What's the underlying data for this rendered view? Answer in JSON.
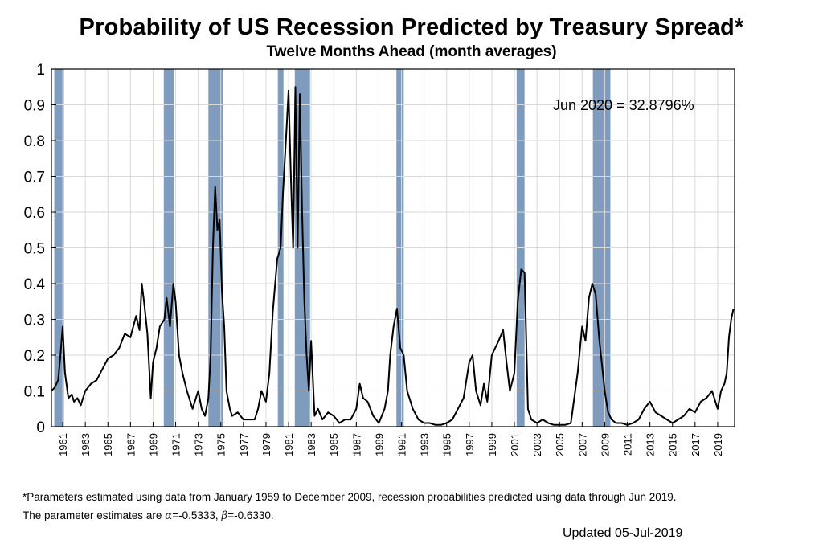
{
  "chart_data": {
    "type": "line",
    "title": "Probability of US Recession Predicted by Treasury Spread*",
    "subtitle": "Twelve Months Ahead (month averages)",
    "annotation": "Jun 2020 = 32.8796%",
    "ylim": [
      0,
      1
    ],
    "xlim": [
      1960.0,
      2020.5
    ],
    "y_ticks": [
      "0",
      "0.1",
      "0.2",
      "0.3",
      "0.4",
      "0.5",
      "0.6",
      "0.7",
      "0.8",
      "0.9",
      "1"
    ],
    "x_ticks": [
      "1961",
      "1963",
      "1965",
      "1967",
      "1969",
      "1971",
      "1973",
      "1975",
      "1977",
      "1979",
      "1981",
      "1983",
      "1985",
      "1987",
      "1989",
      "1991",
      "1993",
      "1995",
      "1997",
      "1999",
      "2001",
      "2003",
      "2005",
      "2007",
      "2009",
      "2011",
      "2013",
      "2015",
      "2017",
      "2019"
    ],
    "grid": true,
    "line_color": "#000000",
    "recession_color": "#7f9bbd",
    "recession_bands": [
      [
        1960.25,
        1961.1
      ],
      [
        1969.95,
        1970.85
      ],
      [
        1973.9,
        1975.2
      ],
      [
        1980.05,
        1980.55
      ],
      [
        1981.55,
        1982.9
      ],
      [
        1990.55,
        1991.2
      ],
      [
        2001.2,
        2001.9
      ],
      [
        2007.95,
        2009.5
      ]
    ],
    "series": [
      {
        "x": [
          1960.0,
          1960.3,
          1960.6,
          1960.8,
          1961.0,
          1961.2,
          1961.5,
          1961.8,
          1962.0,
          1962.3,
          1962.6,
          1963.0,
          1963.5,
          1964.0,
          1964.5,
          1965.0,
          1965.5,
          1966.0,
          1966.5,
          1967.0,
          1967.5,
          1967.8,
          1968.0,
          1968.2,
          1968.5,
          1968.8,
          1969.0,
          1969.3,
          1969.6,
          1970.0,
          1970.2,
          1970.5,
          1970.8,
          1971.0,
          1971.3,
          1971.6,
          1972.0,
          1972.5,
          1973.0,
          1973.3,
          1973.6,
          1973.9,
          1974.1,
          1974.3,
          1974.5,
          1974.7,
          1974.9,
          1975.1,
          1975.3,
          1975.5,
          1975.8,
          1976.0,
          1976.5,
          1977.0,
          1977.5,
          1978.0,
          1978.3,
          1978.6,
          1979.0,
          1979.3,
          1979.6,
          1980.0,
          1980.3,
          1980.5,
          1980.8,
          1981.0,
          1981.2,
          1981.4,
          1981.6,
          1981.8,
          1982.0,
          1982.2,
          1982.4,
          1982.6,
          1982.8,
          1983.0,
          1983.3,
          1983.6,
          1984.0,
          1984.5,
          1985.0,
          1985.5,
          1986.0,
          1986.5,
          1987.0,
          1987.3,
          1987.6,
          1988.0,
          1988.5,
          1989.0,
          1989.5,
          1989.8,
          1990.0,
          1990.3,
          1990.6,
          1990.9,
          1991.2,
          1991.5,
          1992.0,
          1992.5,
          1993.0,
          1993.5,
          1994.0,
          1994.5,
          1995.0,
          1995.5,
          1996.0,
          1996.5,
          1997.0,
          1997.3,
          1997.6,
          1998.0,
          1998.3,
          1998.6,
          1999.0,
          1999.3,
          1999.6,
          2000.0,
          2000.3,
          2000.6,
          2001.0,
          2001.3,
          2001.6,
          2001.9,
          2002.2,
          2002.5,
          2003.0,
          2003.5,
          2004.0,
          2004.5,
          2005.0,
          2005.5,
          2006.0,
          2006.3,
          2006.6,
          2007.0,
          2007.3,
          2007.6,
          2007.9,
          2008.2,
          2008.5,
          2008.8,
          2009.0,
          2009.3,
          2009.6,
          2010.0,
          2010.5,
          2011.0,
          2011.5,
          2012.0,
          2012.5,
          2013.0,
          2013.5,
          2014.0,
          2014.5,
          2015.0,
          2015.5,
          2016.0,
          2016.5,
          2017.0,
          2017.5,
          2018.0,
          2018.5,
          2019.0,
          2019.3,
          2019.6,
          2019.8,
          2020.0,
          2020.2,
          2020.4
        ],
        "y": [
          0.1,
          0.11,
          0.13,
          0.2,
          0.28,
          0.15,
          0.08,
          0.09,
          0.07,
          0.08,
          0.06,
          0.1,
          0.12,
          0.13,
          0.16,
          0.19,
          0.2,
          0.22,
          0.26,
          0.25,
          0.31,
          0.27,
          0.4,
          0.35,
          0.26,
          0.08,
          0.18,
          0.22,
          0.28,
          0.3,
          0.36,
          0.28,
          0.4,
          0.35,
          0.2,
          0.15,
          0.1,
          0.05,
          0.1,
          0.05,
          0.03,
          0.08,
          0.2,
          0.5,
          0.67,
          0.55,
          0.58,
          0.38,
          0.28,
          0.1,
          0.05,
          0.03,
          0.04,
          0.02,
          0.02,
          0.02,
          0.05,
          0.1,
          0.07,
          0.15,
          0.32,
          0.47,
          0.5,
          0.65,
          0.82,
          0.94,
          0.7,
          0.5,
          0.95,
          0.5,
          0.93,
          0.6,
          0.35,
          0.2,
          0.1,
          0.24,
          0.03,
          0.05,
          0.02,
          0.04,
          0.03,
          0.01,
          0.02,
          0.02,
          0.05,
          0.12,
          0.08,
          0.07,
          0.03,
          0.01,
          0.05,
          0.1,
          0.2,
          0.28,
          0.33,
          0.22,
          0.2,
          0.1,
          0.05,
          0.02,
          0.01,
          0.01,
          0.005,
          0.005,
          0.01,
          0.02,
          0.05,
          0.08,
          0.18,
          0.2,
          0.1,
          0.06,
          0.12,
          0.07,
          0.2,
          0.22,
          0.24,
          0.27,
          0.18,
          0.1,
          0.15,
          0.35,
          0.44,
          0.43,
          0.05,
          0.02,
          0.01,
          0.02,
          0.01,
          0.005,
          0.005,
          0.005,
          0.01,
          0.08,
          0.15,
          0.28,
          0.24,
          0.36,
          0.4,
          0.37,
          0.25,
          0.16,
          0.1,
          0.04,
          0.02,
          0.01,
          0.01,
          0.005,
          0.01,
          0.02,
          0.05,
          0.07,
          0.04,
          0.03,
          0.02,
          0.01,
          0.02,
          0.03,
          0.05,
          0.04,
          0.07,
          0.08,
          0.1,
          0.05,
          0.1,
          0.12,
          0.15,
          0.25,
          0.3,
          0.33
        ]
      }
    ]
  },
  "footnote": {
    "line1": "*Parameters estimated using data from January 1959 to December 2009, recession probabilities predicted using data through Jun 2019.",
    "line2_prefix": "The parameter estimates are ",
    "alpha_symbol": "α",
    "alpha_value": "=-0.5333, ",
    "beta_symbol": "β",
    "beta_value": "=-0.6330."
  },
  "updated": "Updated 05-Jul-2019"
}
